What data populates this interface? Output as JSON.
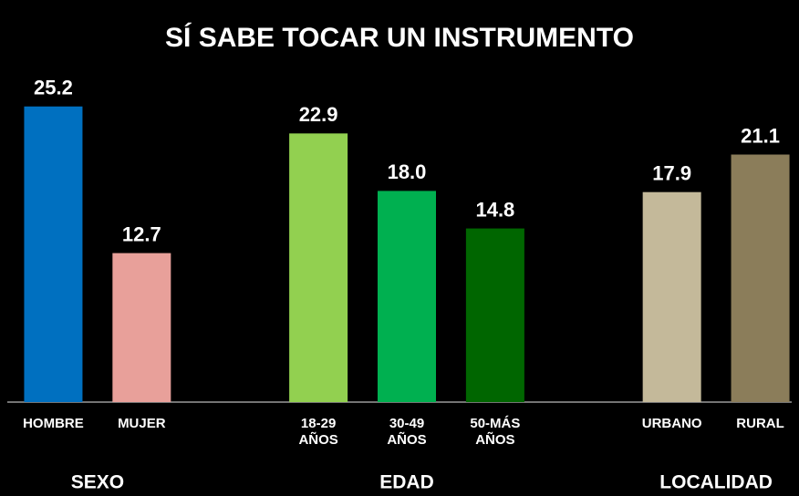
{
  "chart_data": {
    "type": "bar",
    "title": "SÍ SABE TOCAR UN INSTRUMENTO",
    "categories": [
      "HOMBRE",
      "MUJER",
      null,
      "18-29\nAÑOS",
      "30-49\nAÑOS",
      "50-MÁS\nAÑOS",
      null,
      "URBANO",
      "RURAL"
    ],
    "values": [
      25.2,
      12.7,
      null,
      22.9,
      18.0,
      14.8,
      null,
      17.9,
      21.1
    ],
    "value_labels": [
      "25.2",
      "12.7",
      null,
      "22.9",
      "18.0",
      "14.8",
      null,
      "17.9",
      "21.1"
    ],
    "colors": [
      "#0070c0",
      "#e8a09a",
      null,
      "#92d050",
      "#00b050",
      "#006600",
      null,
      "#c4b99a",
      "#8b7d5a"
    ],
    "groups": [
      "SEXO",
      "EDAD",
      "LOCALIDAD"
    ],
    "ylim": [
      0,
      30
    ]
  }
}
